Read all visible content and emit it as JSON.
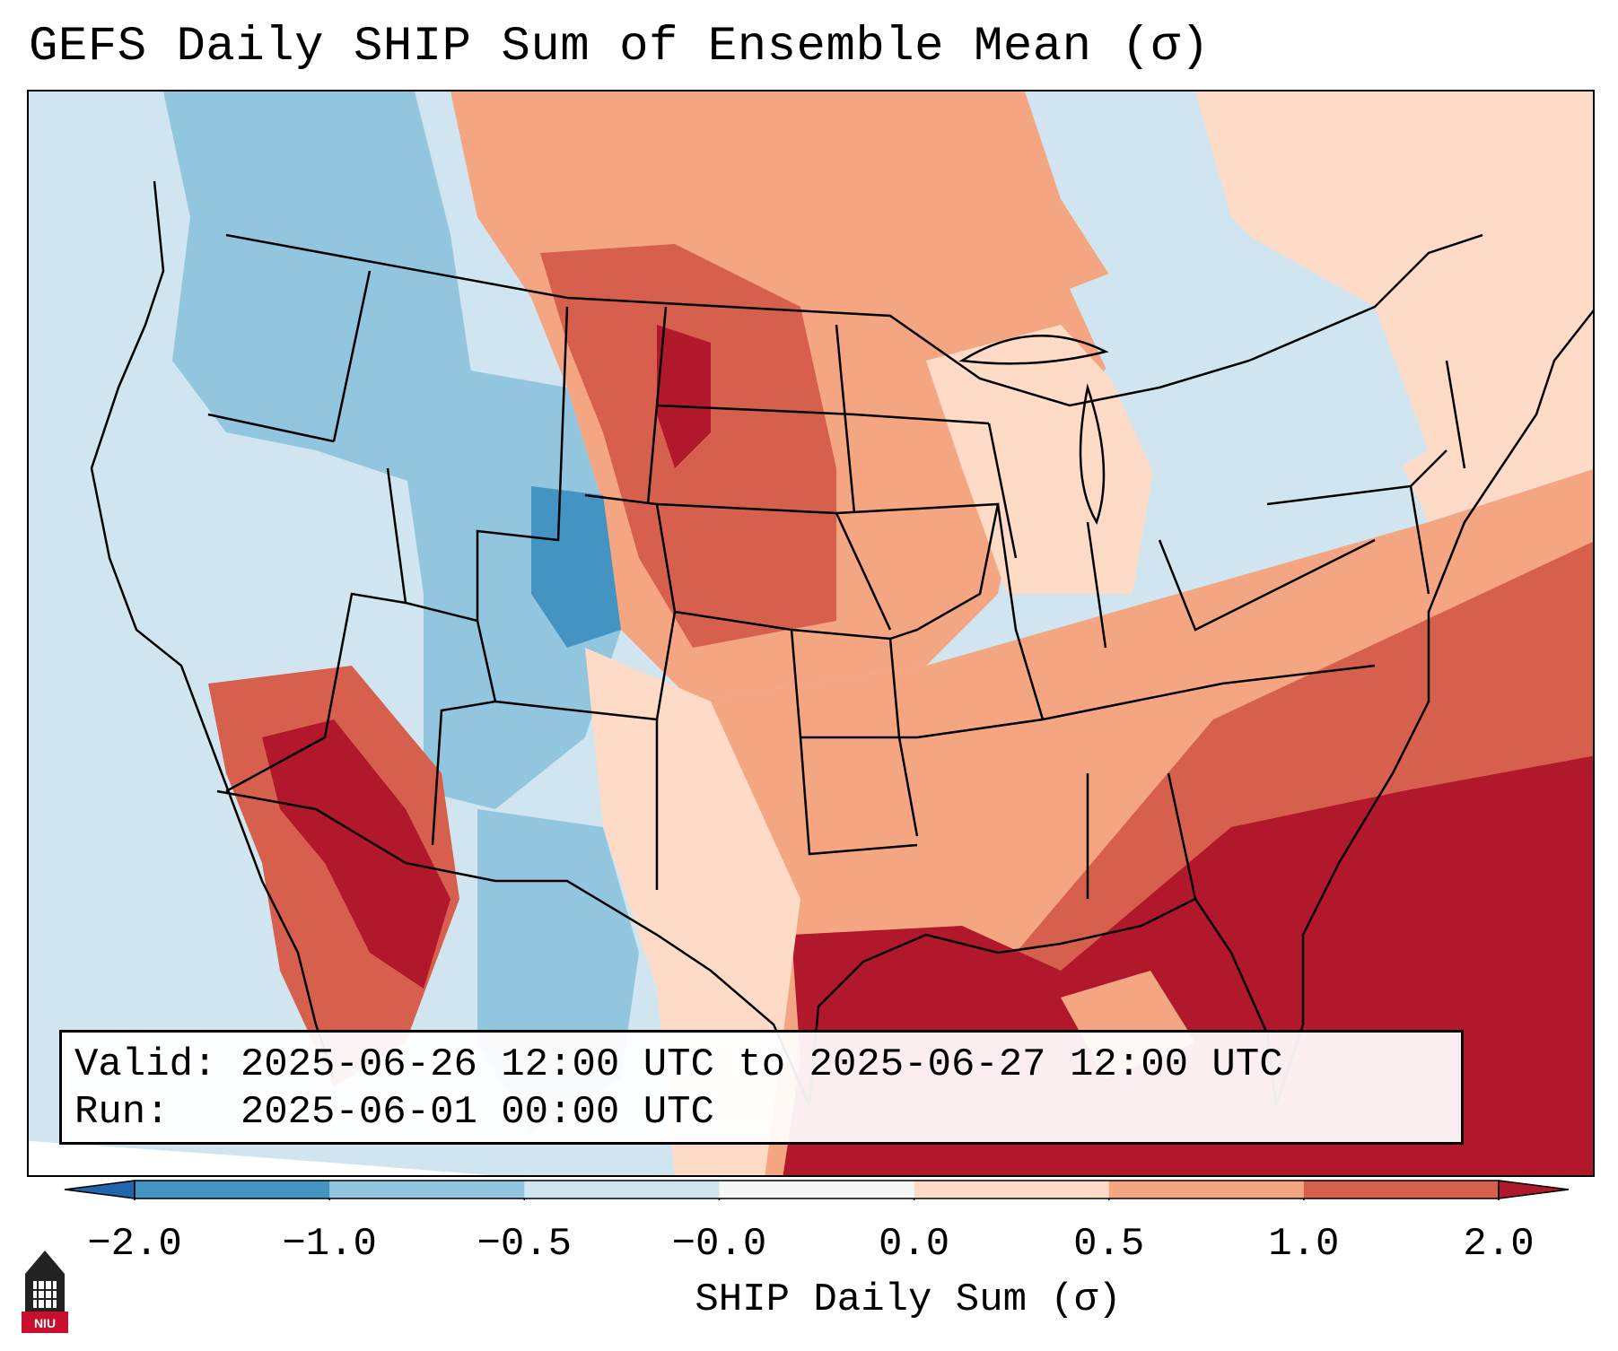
{
  "title": "GEFS Daily SHIP Sum of Ensemble Mean (σ)",
  "info": {
    "valid_line": "Valid: 2025-06-26 12:00 UTC to 2025-06-27 12:00 UTC",
    "run_line": "Run:   2025-06-01 00:00 UTC"
  },
  "colorbar": {
    "label": "SHIP Daily Sum (σ)",
    "ticks": [
      "−2.0",
      "−1.0",
      "−0.5",
      "−0.0",
      "0.0",
      "0.5",
      "1.0",
      "2.0"
    ],
    "colors": [
      "#2166ac",
      "#4393c3",
      "#92c5de",
      "#d1e5f0",
      "#f7f7f7",
      "#fddbc7",
      "#f4a582",
      "#d6604d",
      "#b2182b"
    ],
    "extend": "both"
  },
  "logo": {
    "text": "NIU",
    "colors": {
      "shield": "#c8102e",
      "tower": "#222222"
    }
  },
  "map": {
    "region": "Continental United States",
    "ocean_color": "#f7f7f7",
    "field_colors": {
      "strong_negative": "#4393c3",
      "negative": "#92c5de",
      "weak_negative": "#d1e5f0",
      "weak_positive": "#fddbc7",
      "positive": "#f4a582",
      "strong_positive": "#d6604d",
      "extreme_positive": "#b2182b"
    }
  }
}
